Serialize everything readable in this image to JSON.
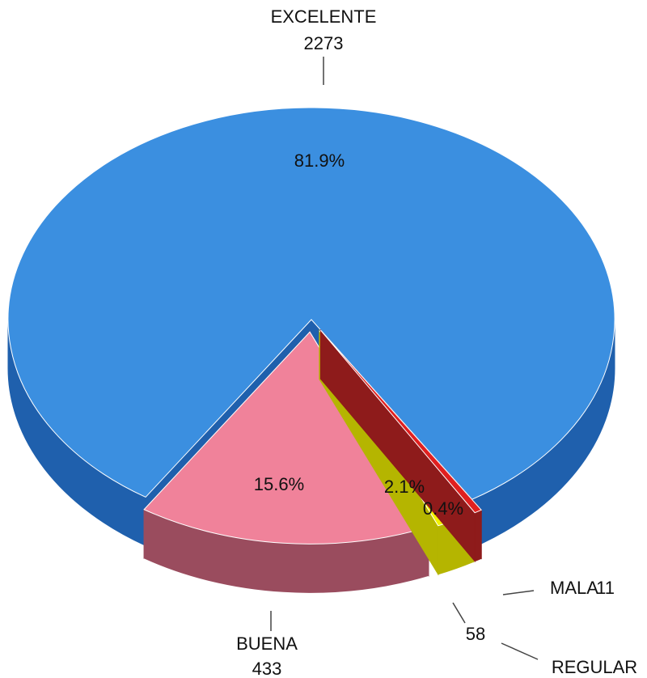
{
  "chart_data": {
    "type": "pie",
    "three_d": true,
    "categories": [
      "EXCELENTE",
      "BUENA",
      "REGULAR",
      "MALA"
    ],
    "values": [
      2273,
      433,
      58,
      11
    ],
    "percent_labels": [
      "81.9%",
      "15.6%",
      "2.1%",
      "0.4%"
    ],
    "colors": [
      "#3b8fe0",
      "#f0829a",
      "#f2f200",
      "#e02020"
    ],
    "side_colors": [
      "#1f60ad",
      "#9a4c5e",
      "#b5b500",
      "#8e1b1b"
    ]
  }
}
